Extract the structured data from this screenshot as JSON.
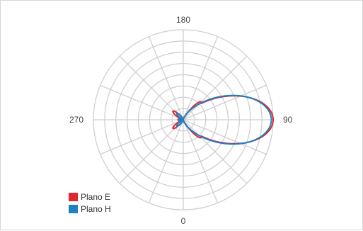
{
  "chart_data": {
    "type": "polar",
    "angle_unit": "degrees",
    "angle_zero": "bottom",
    "angle_direction": "counterclockwise",
    "tick_labels": [
      {
        "angle": 0,
        "text": "0"
      },
      {
        "angle": 90,
        "text": "90"
      },
      {
        "angle": 180,
        "text": "180"
      },
      {
        "angle": 270,
        "text": "270"
      }
    ],
    "radial_rings": 8,
    "spokes_every_deg": 22.5,
    "grid": true,
    "legend_position": "bottom-left",
    "series": [
      {
        "name": "Plano E",
        "color": "#e3262d",
        "lobes": [
          {
            "center": 90,
            "peak": 1.0,
            "width": 26
          },
          {
            "center": 45,
            "peak": 0.28,
            "width": 9
          },
          {
            "center": 135,
            "peak": 0.28,
            "width": 9
          },
          {
            "center": 230,
            "peak": 0.15,
            "width": 10
          },
          {
            "center": 310,
            "peak": 0.15,
            "width": 10
          },
          {
            "center": 270,
            "peak": 0.06,
            "width": 14
          }
        ]
      },
      {
        "name": "Plano H",
        "color": "#1f7fc3",
        "lobes": [
          {
            "center": 90,
            "peak": 0.98,
            "width": 27
          },
          {
            "center": 48,
            "peak": 0.12,
            "width": 9
          },
          {
            "center": 132,
            "peak": 0.12,
            "width": 9
          },
          {
            "center": 225,
            "peak": 0.1,
            "width": 11
          },
          {
            "center": 315,
            "peak": 0.1,
            "width": 11
          },
          {
            "center": 270,
            "peak": 0.05,
            "width": 14
          }
        ]
      }
    ]
  }
}
